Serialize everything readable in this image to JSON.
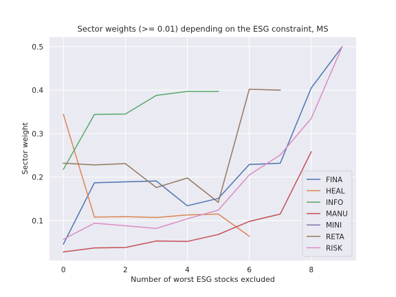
{
  "chart_data": {
    "type": "line",
    "title": "Sector weights (>= 0.01) depending on the ESG constraint, MS",
    "xlabel": "Number of worst ESG stocks excluded",
    "ylabel": "Sector weight",
    "xlim": [
      -0.45,
      9.45
    ],
    "ylim": [
      0.008,
      0.522
    ],
    "xticks": [
      0,
      2,
      4,
      6,
      8
    ],
    "xtick_labels": [
      "0",
      "2",
      "4",
      "6",
      "8"
    ],
    "yticks": [
      0.1,
      0.2,
      0.3,
      0.4,
      0.5
    ],
    "ytick_labels": [
      "0.1",
      "0.2",
      "0.3",
      "0.4",
      "0.5"
    ],
    "grid": true,
    "legend_position": "lower-right",
    "series": [
      {
        "name": "FINA",
        "color": "#4c72b0",
        "points": [
          [
            0,
            0.046
          ],
          [
            1,
            0.187
          ],
          [
            2,
            0.189
          ],
          [
            3,
            0.191
          ],
          [
            4,
            0.134
          ],
          [
            5,
            0.151
          ],
          [
            6,
            0.229
          ],
          [
            7,
            0.232
          ],
          [
            8,
            0.405
          ],
          [
            9,
            0.5
          ]
        ]
      },
      {
        "name": "HEAL",
        "color": "#dd8452",
        "points": [
          [
            0,
            0.344
          ],
          [
            1,
            0.108
          ],
          [
            2,
            0.109
          ],
          [
            3,
            0.107
          ],
          [
            4,
            0.113
          ],
          [
            5,
            0.115
          ],
          [
            6,
            0.064
          ]
        ]
      },
      {
        "name": "INFO",
        "color": "#55a868",
        "points": [
          [
            0,
            0.218
          ],
          [
            1,
            0.344
          ],
          [
            2,
            0.345
          ],
          [
            3,
            0.388
          ],
          [
            4,
            0.397
          ],
          [
            5,
            0.397
          ]
        ]
      },
      {
        "name": "MANU",
        "color": "#c44e52",
        "points": [
          [
            0,
            0.028
          ],
          [
            1,
            0.037
          ],
          [
            2,
            0.038
          ],
          [
            3,
            0.053
          ],
          [
            4,
            0.052
          ],
          [
            5,
            0.068
          ],
          [
            6,
            0.098
          ],
          [
            7,
            0.115
          ],
          [
            8,
            0.258
          ]
        ]
      },
      {
        "name": "MINI",
        "color": "#8172b3",
        "points": [
          [
            9,
            0.5
          ]
        ]
      },
      {
        "name": "RETA",
        "color": "#937860",
        "points": [
          [
            0,
            0.232
          ],
          [
            1,
            0.228
          ],
          [
            2,
            0.231
          ],
          [
            3,
            0.176
          ],
          [
            4,
            0.198
          ],
          [
            5,
            0.142
          ],
          [
            6,
            0.402
          ],
          [
            7,
            0.4
          ]
        ]
      },
      {
        "name": "RISK",
        "color": "#da8bc3",
        "points": [
          [
            0,
            0.057
          ],
          [
            1,
            0.094
          ],
          [
            2,
            0.088
          ],
          [
            3,
            0.082
          ],
          [
            4,
            0.104
          ],
          [
            5,
            0.124
          ],
          [
            6,
            0.205
          ],
          [
            7,
            0.251
          ],
          [
            8,
            0.335
          ],
          [
            9,
            0.5
          ]
        ]
      }
    ]
  }
}
